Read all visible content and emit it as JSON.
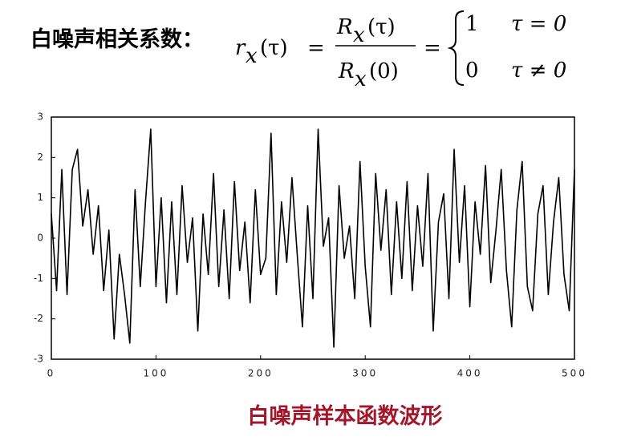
{
  "header": {
    "title": "白噪声相关系数：",
    "lhs": {
      "base": "r",
      "sub": "x",
      "arg": "(τ)"
    },
    "equals": "=",
    "numerator": {
      "base": "R",
      "sub": "x",
      "arg": "(τ)"
    },
    "denominator": {
      "base": "R",
      "sub": "x",
      "arg": "(0)"
    },
    "cases": [
      {
        "value": "1",
        "condition": "τ = 0"
      },
      {
        "value": "0",
        "condition": "τ ≠ 0"
      }
    ]
  },
  "chart_data": {
    "type": "line",
    "color": "#000000",
    "x": [
      0,
      5,
      10,
      15,
      20,
      25,
      30,
      35,
      40,
      45,
      50,
      55,
      60,
      65,
      70,
      75,
      80,
      85,
      90,
      95,
      100,
      105,
      110,
      115,
      120,
      125,
      130,
      135,
      140,
      145,
      150,
      155,
      160,
      165,
      170,
      175,
      180,
      185,
      190,
      195,
      200,
      205,
      210,
      215,
      220,
      225,
      230,
      235,
      240,
      245,
      250,
      255,
      260,
      265,
      270,
      275,
      280,
      285,
      290,
      295,
      300,
      305,
      310,
      315,
      320,
      325,
      330,
      335,
      340,
      345,
      350,
      355,
      360,
      365,
      370,
      375,
      380,
      385,
      390,
      395,
      400,
      405,
      410,
      415,
      420,
      425,
      430,
      435,
      440,
      445,
      450,
      455,
      460,
      465,
      470,
      475,
      480,
      485,
      490,
      495,
      500
    ],
    "values": [
      0.6,
      -1.3,
      1.7,
      -1.4,
      1.7,
      2.2,
      0.3,
      1.2,
      -0.4,
      0.8,
      -1.3,
      0.2,
      -2.5,
      -0.4,
      -1.4,
      -2.6,
      1.2,
      -1.2,
      0.9,
      2.7,
      -1.2,
      1.0,
      -1.6,
      0.9,
      -1.4,
      1.3,
      -0.6,
      0.5,
      -2.3,
      0.6,
      -0.9,
      1.6,
      -1.2,
      0.7,
      -1.5,
      1.4,
      -0.8,
      0.4,
      -1.6,
      1.2,
      -0.9,
      -0.5,
      2.6,
      -1.4,
      0.9,
      -0.6,
      1.5,
      -0.4,
      -2.2,
      0.8,
      -1.5,
      2.7,
      -0.2,
      0.5,
      -2.7,
      1.3,
      -0.5,
      0.3,
      -1.5,
      1.9,
      -0.7,
      -2.2,
      1.6,
      -0.3,
      1.2,
      -1.4,
      0.9,
      -1.0,
      1.4,
      -1.3,
      0.8,
      -0.7,
      1.6,
      -2.3,
      0.4,
      1.1,
      -1.5,
      2.2,
      -0.6,
      1.3,
      -1.7,
      0.9,
      -0.4,
      1.8,
      -1.1,
      0.2,
      1.7,
      -0.8,
      -2.2,
      0.7,
      1.9,
      -1.2,
      -1.8,
      0.6,
      1.3,
      -1.4,
      0.4,
      1.5,
      -0.9,
      -1.8,
      1.7
    ],
    "xlim": [
      0,
      500
    ],
    "xticks": [
      0,
      100,
      200,
      300,
      400,
      500
    ],
    "ylim": [
      -3,
      3
    ],
    "yticks": [
      -3,
      -2,
      -1,
      0,
      1,
      2,
      3
    ]
  },
  "caption": "白噪声样本函数波形"
}
